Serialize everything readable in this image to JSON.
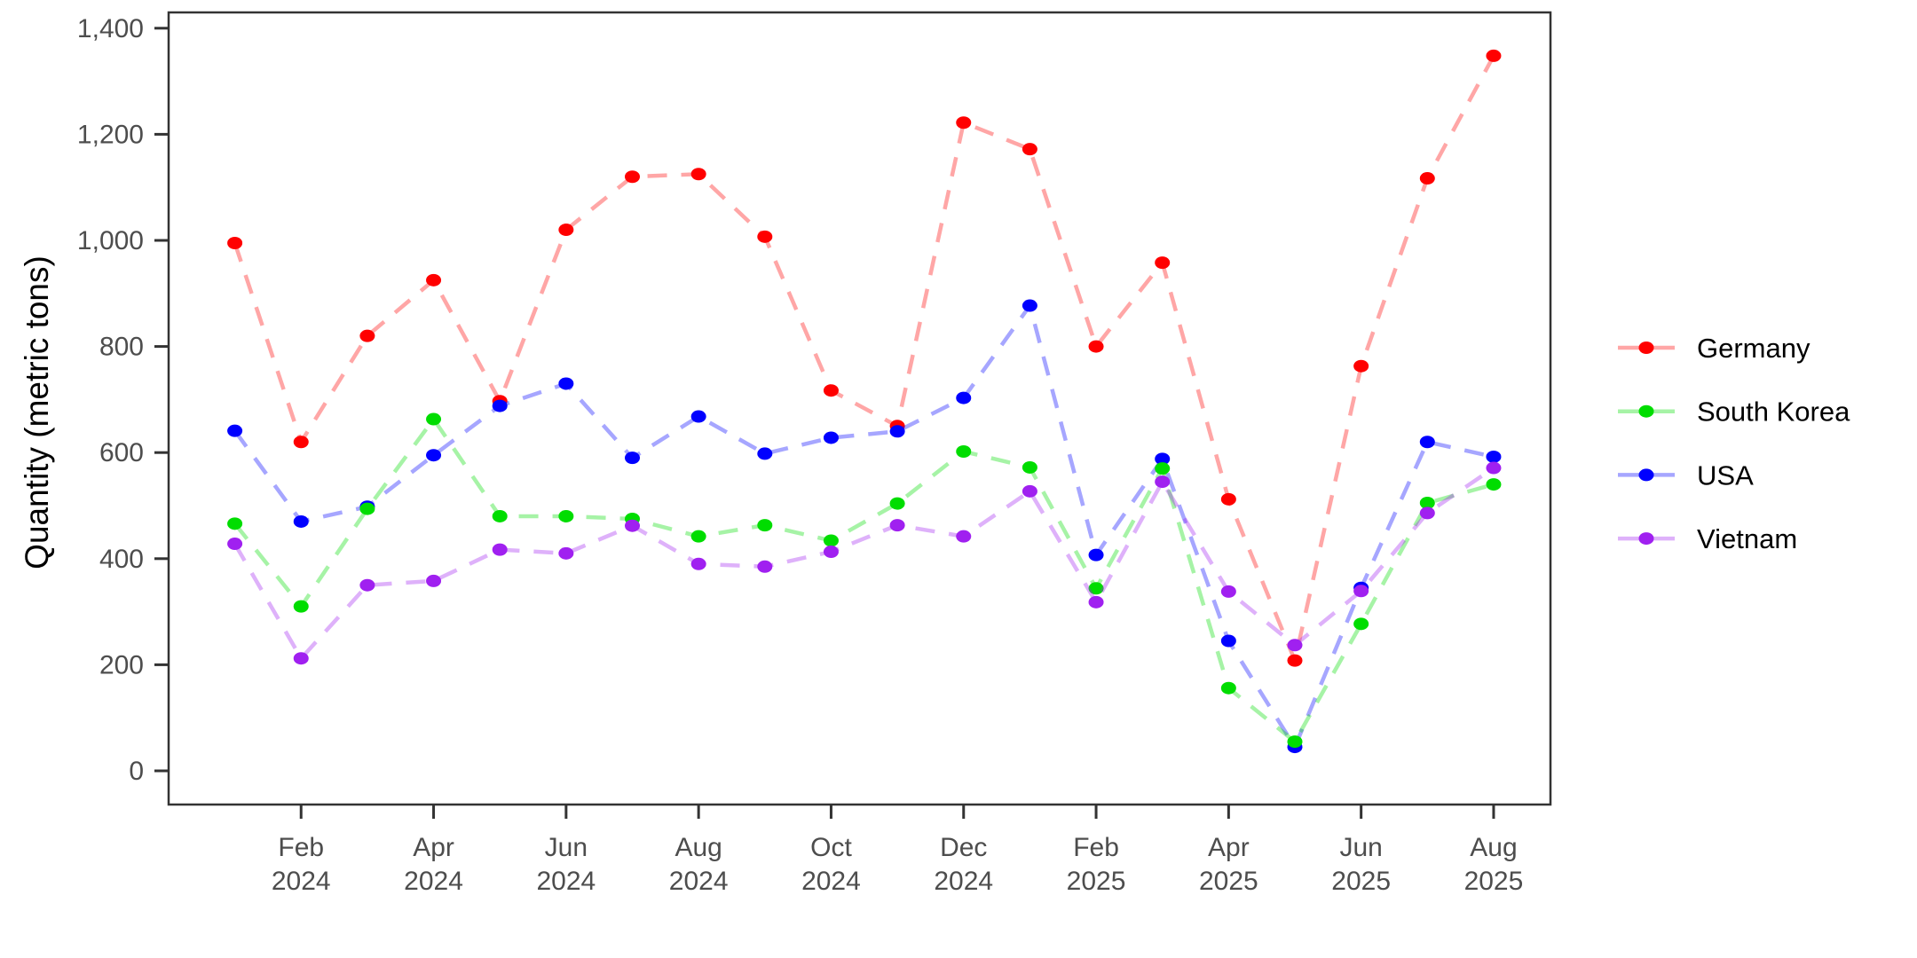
{
  "chart_data": {
    "type": "line",
    "title": "",
    "xlabel": "",
    "ylabel": "Quantity (metric tons)",
    "ylim": [
      0,
      1400
    ],
    "grid": false,
    "legend_position": "right",
    "y_ticks": [
      {
        "value": 0,
        "label": "0"
      },
      {
        "value": 200,
        "label": "200"
      },
      {
        "value": 400,
        "label": "400"
      },
      {
        "value": 600,
        "label": "600"
      },
      {
        "value": 800,
        "label": "800"
      },
      {
        "value": 1000,
        "label": "1,000"
      },
      {
        "value": 1200,
        "label": "1,200"
      },
      {
        "value": 1400,
        "label": "1,400"
      }
    ],
    "x": [
      "Jan 2024",
      "Feb 2024",
      "Mar 2024",
      "Apr 2024",
      "May 2024",
      "Jun 2024",
      "Jul 2024",
      "Aug 2024",
      "Sep 2024",
      "Oct 2024",
      "Nov 2024",
      "Dec 2024",
      "Jan 2025",
      "Feb 2025",
      "Mar 2025",
      "Apr 2025",
      "May 2025",
      "Jun 2025",
      "Jul 2025",
      "Aug 2025"
    ],
    "x_ticks": [
      {
        "month_index": 1,
        "line1": "Feb",
        "line2": "2024"
      },
      {
        "month_index": 3,
        "line1": "Apr",
        "line2": "2024"
      },
      {
        "month_index": 5,
        "line1": "Jun",
        "line2": "2024"
      },
      {
        "month_index": 7,
        "line1": "Aug",
        "line2": "2024"
      },
      {
        "month_index": 9,
        "line1": "Oct",
        "line2": "2024"
      },
      {
        "month_index": 11,
        "line1": "Dec",
        "line2": "2024"
      },
      {
        "month_index": 13,
        "line1": "Feb",
        "line2": "2025"
      },
      {
        "month_index": 15,
        "line1": "Apr",
        "line2": "2025"
      },
      {
        "month_index": 17,
        "line1": "Jun",
        "line2": "2025"
      },
      {
        "month_index": 19,
        "line1": "Aug",
        "line2": "2025"
      }
    ],
    "series": [
      {
        "name": "Germany",
        "color": "#FF0000",
        "values": [
          995,
          620,
          820,
          925,
          697,
          1020,
          1120,
          1125,
          1007,
          717,
          650,
          1222,
          1172,
          800,
          958,
          512,
          208,
          763,
          1117,
          1348
        ]
      },
      {
        "name": "South Korea",
        "color": "#00DD00",
        "values": [
          466,
          310,
          494,
          663,
          480,
          480,
          475,
          442,
          463,
          434,
          504,
          602,
          572,
          344,
          570,
          156,
          55,
          277,
          505,
          540
        ]
      },
      {
        "name": "USA",
        "color": "#0000FF",
        "values": [
          641,
          470,
          498,
          595,
          688,
          730,
          590,
          668,
          598,
          628,
          640,
          703,
          877,
          407,
          588,
          245,
          45,
          345,
          620,
          592
        ]
      },
      {
        "name": "Vietnam",
        "color": "#A020F0",
        "values": [
          428,
          212,
          350,
          358,
          417,
          410,
          462,
          390,
          385,
          413,
          463,
          442,
          527,
          318,
          545,
          338,
          237,
          339,
          486,
          571
        ]
      }
    ],
    "style": {
      "line_opacity": 0.35,
      "line_dash": "22 16",
      "axis_color": "#333333",
      "tick_label_color": "#4D4D4D",
      "background": "#FFFFFF"
    }
  }
}
